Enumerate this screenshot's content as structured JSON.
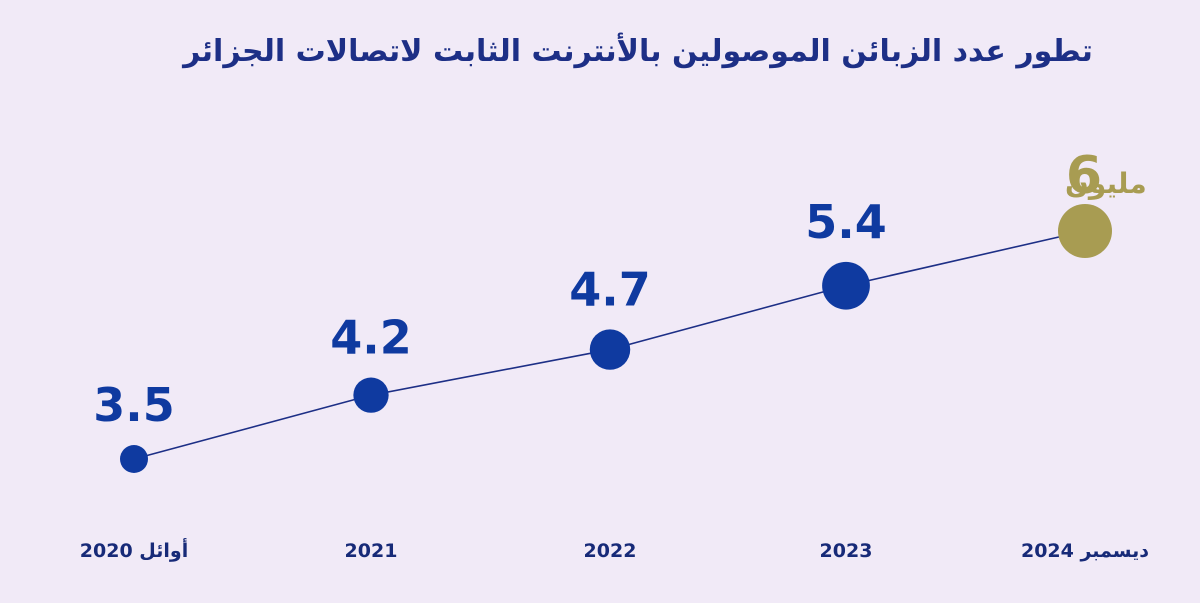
{
  "chart_data": {
    "type": "line",
    "title": "تطور عدد الزبائن الموصولين بالأنترنت الثابت لاتصالات الجزائر",
    "categories": [
      "أوائل 2020",
      "2021",
      "2022",
      "2023",
      "ديسمبر 2024"
    ],
    "values": [
      3.5,
      4.2,
      4.7,
      5.4,
      6
    ],
    "value_labels": [
      "3.5",
      "4.2",
      "4.7",
      "5.4",
      "6"
    ],
    "final_value_unit": "مليون",
    "colors": {
      "background": "#f1eaf7",
      "line": "#1d2f86",
      "points": "#0f3aa0",
      "highlight": "#a89c52",
      "text": "#172a78"
    },
    "grid": false,
    "legend": "none"
  }
}
